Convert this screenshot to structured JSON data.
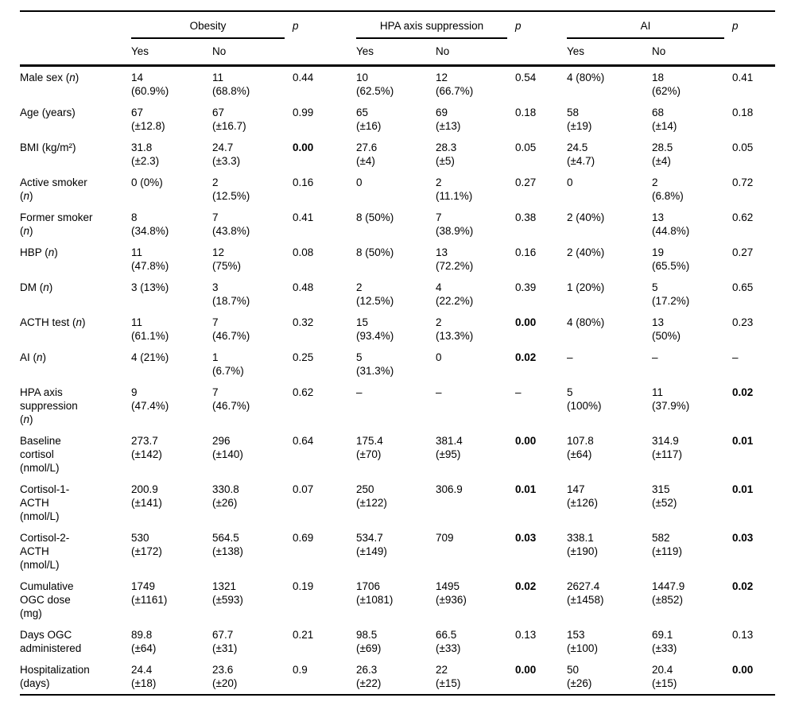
{
  "table": {
    "p_label": "p",
    "sub_headers": [
      "Yes",
      "No"
    ],
    "col_groups": [
      {
        "label": "Obesity"
      },
      {
        "label": "HPA axis suppression"
      },
      {
        "label": "AI"
      }
    ],
    "rows": [
      {
        "label": "Male sex (n)",
        "obesity": {
          "yes": "14\n(60.9%)",
          "no": "11\n(68.8%)",
          "p": "0.44",
          "p_bold": false
        },
        "hpa": {
          "yes": "10\n(62.5%)",
          "no": "12\n(66.7%)",
          "p": "0.54",
          "p_bold": false
        },
        "ai": {
          "yes": "4 (80%)",
          "no": "18\n(62%)",
          "p": "0.41",
          "p_bold": false
        }
      },
      {
        "label": "Age (years)",
        "obesity": {
          "yes": "67\n(±12.8)",
          "no": "67\n(±16.7)",
          "p": "0.99",
          "p_bold": false
        },
        "hpa": {
          "yes": "65\n(±16)",
          "no": "69\n(±13)",
          "p": "0.18",
          "p_bold": false
        },
        "ai": {
          "yes": "58\n(±19)",
          "no": "68\n(±14)",
          "p": "0.18",
          "p_bold": false
        }
      },
      {
        "label": "BMI (kg/m²)",
        "obesity": {
          "yes": "31.8\n(±2.3)",
          "no": "24.7\n(±3.3)",
          "p": "0.00",
          "p_bold": true
        },
        "hpa": {
          "yes": "27.6\n(±4)",
          "no": "28.3\n(±5)",
          "p": "0.05",
          "p_bold": false
        },
        "ai": {
          "yes": "24.5\n(±4.7)",
          "no": "28.5\n(±4)",
          "p": "0.05",
          "p_bold": false
        }
      },
      {
        "label": "Active smoker\n(n)",
        "obesity": {
          "yes": "0 (0%)",
          "no": "2\n(12.5%)",
          "p": "0.16",
          "p_bold": false
        },
        "hpa": {
          "yes": "0",
          "no": "2\n(11.1%)",
          "p": "0.27",
          "p_bold": false
        },
        "ai": {
          "yes": "0",
          "no": "2\n(6.8%)",
          "p": "0.72",
          "p_bold": false
        }
      },
      {
        "label": "Former smoker\n(n)",
        "obesity": {
          "yes": "8\n(34.8%)",
          "no": "7\n(43.8%)",
          "p": "0.41",
          "p_bold": false
        },
        "hpa": {
          "yes": "8 (50%)",
          "no": "7\n(38.9%)",
          "p": "0.38",
          "p_bold": false
        },
        "ai": {
          "yes": "2 (40%)",
          "no": "13\n(44.8%)",
          "p": "0.62",
          "p_bold": false
        }
      },
      {
        "label": "HBP (n)",
        "obesity": {
          "yes": "11\n(47.8%)",
          "no": "12\n(75%)",
          "p": "0.08",
          "p_bold": false
        },
        "hpa": {
          "yes": "8 (50%)",
          "no": "13\n(72.2%)",
          "p": "0.16",
          "p_bold": false
        },
        "ai": {
          "yes": "2 (40%)",
          "no": "19\n(65.5%)",
          "p": "0.27",
          "p_bold": false
        }
      },
      {
        "label": "DM (n)",
        "obesity": {
          "yes": "3 (13%)",
          "no": "3\n(18.7%)",
          "p": "0.48",
          "p_bold": false
        },
        "hpa": {
          "yes": "2\n(12.5%)",
          "no": "4\n(22.2%)",
          "p": "0.39",
          "p_bold": false
        },
        "ai": {
          "yes": "1 (20%)",
          "no": "5\n(17.2%)",
          "p": "0.65",
          "p_bold": false
        }
      },
      {
        "label": "ACTH test (n)",
        "obesity": {
          "yes": "11\n(61.1%)",
          "no": "7\n(46.7%)",
          "p": "0.32",
          "p_bold": false
        },
        "hpa": {
          "yes": "15\n(93.4%)",
          "no": "2\n(13.3%)",
          "p": "0.00",
          "p_bold": true
        },
        "ai": {
          "yes": "4 (80%)",
          "no": "13\n(50%)",
          "p": "0.23",
          "p_bold": false
        }
      },
      {
        "label": "AI (n)",
        "obesity": {
          "yes": "4 (21%)",
          "no": "1\n(6.7%)",
          "p": "0.25",
          "p_bold": false
        },
        "hpa": {
          "yes": "5\n(31.3%)",
          "no": "0",
          "p": "0.02",
          "p_bold": true
        },
        "ai": {
          "yes": "–",
          "no": "–",
          "p": "–",
          "p_bold": false
        }
      },
      {
        "label": "HPA axis\nsuppression\n(n)",
        "obesity": {
          "yes": "9\n(47.4%)",
          "no": "7\n(46.7%)",
          "p": "0.62",
          "p_bold": false
        },
        "hpa": {
          "yes": "–",
          "no": "–",
          "p": "–",
          "p_bold": false
        },
        "ai": {
          "yes": "5\n(100%)",
          "no": "11\n(37.9%)",
          "p": "0.02",
          "p_bold": true
        }
      },
      {
        "label": "Baseline\ncortisol\n(nmol/L)",
        "obesity": {
          "yes": "273.7\n(±142)",
          "no": "296\n(±140)",
          "p": "0.64",
          "p_bold": false
        },
        "hpa": {
          "yes": "175.4\n(±70)",
          "no": "381.4\n(±95)",
          "p": "0.00",
          "p_bold": true
        },
        "ai": {
          "yes": "107.8\n(±64)",
          "no": "314.9\n(±117)",
          "p": "0.01",
          "p_bold": true
        }
      },
      {
        "label": "Cortisol-1-\nACTH\n(nmol/L)",
        "obesity": {
          "yes": "200.9\n(±141)",
          "no": "330.8\n(±26)",
          "p": "0.07",
          "p_bold": false
        },
        "hpa": {
          "yes": "250\n(±122)",
          "no": "306.9",
          "p": "0.01",
          "p_bold": true
        },
        "ai": {
          "yes": "147\n(±126)",
          "no": "315\n(±52)",
          "p": "0.01",
          "p_bold": true
        }
      },
      {
        "label": "Cortisol-2-\nACTH\n(nmol/L)",
        "obesity": {
          "yes": "530\n(±172)",
          "no": "564.5\n(±138)",
          "p": "0.69",
          "p_bold": false
        },
        "hpa": {
          "yes": "534.7\n(±149)",
          "no": "709",
          "p": "0.03",
          "p_bold": true
        },
        "ai": {
          "yes": "338.1\n(±190)",
          "no": "582\n(±119)",
          "p": "0.03",
          "p_bold": true
        }
      },
      {
        "label": "Cumulative\nOGC dose\n(mg)",
        "obesity": {
          "yes": "1749\n(±1161)",
          "no": "1321\n(±593)",
          "p": "0.19",
          "p_bold": false
        },
        "hpa": {
          "yes": "1706\n(±1081)",
          "no": "1495\n(±936)",
          "p": "0.02",
          "p_bold": true
        },
        "ai": {
          "yes": "2627.4\n(±1458)",
          "no": "1447.9\n(±852)",
          "p": "0.02",
          "p_bold": true
        }
      },
      {
        "label": "Days OGC\nadministered",
        "obesity": {
          "yes": "89.8\n(±64)",
          "no": "67.7\n(±31)",
          "p": "0.21",
          "p_bold": false
        },
        "hpa": {
          "yes": "98.5\n(±69)",
          "no": "66.5\n(±33)",
          "p": "0.13",
          "p_bold": false
        },
        "ai": {
          "yes": "153\n(±100)",
          "no": "69.1\n(±33)",
          "p": "0.13",
          "p_bold": false
        }
      },
      {
        "label": "Hospitalization\n(days)",
        "obesity": {
          "yes": "24.4\n(±18)",
          "no": "23.6\n(±20)",
          "p": "0.9",
          "p_bold": false
        },
        "hpa": {
          "yes": "26.3\n(±22)",
          "no": "22\n(±15)",
          "p": "0.00",
          "p_bold": true
        },
        "ai": {
          "yes": "50\n(±26)",
          "no": "20.4\n(±15)",
          "p": "0.00",
          "p_bold": true
        }
      }
    ]
  }
}
